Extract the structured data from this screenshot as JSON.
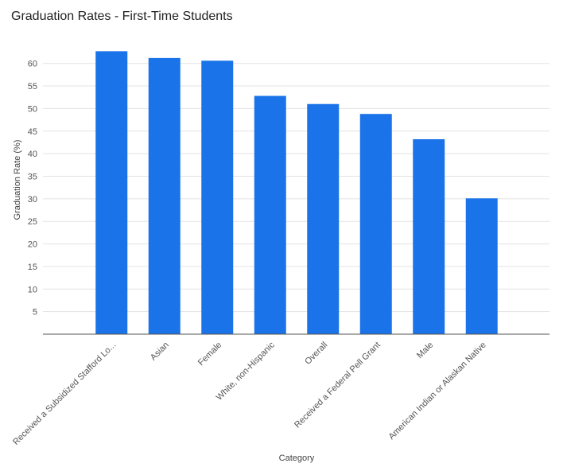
{
  "chart_data": {
    "type": "bar",
    "title": "Graduation Rates - First-Time Students",
    "xlabel": "Category",
    "ylabel": "Graduation Rate (%)",
    "categories": [
      "Received a Subsidized Stafford Lo...",
      "Asian",
      "Female",
      "White, non-Hispanic",
      "Overall",
      "Received a Federal Pell Grant",
      "Male",
      "American Indian or Alaskan Native"
    ],
    "values": [
      62.7,
      61.2,
      60.6,
      52.8,
      51.0,
      48.8,
      43.2,
      30.1
    ],
    "yticks": [
      5,
      10,
      15,
      20,
      25,
      30,
      35,
      40,
      45,
      50,
      55,
      60
    ],
    "ylim": [
      0,
      64
    ],
    "grid": true,
    "legend": "none",
    "bar_color": "#1a73e8"
  }
}
